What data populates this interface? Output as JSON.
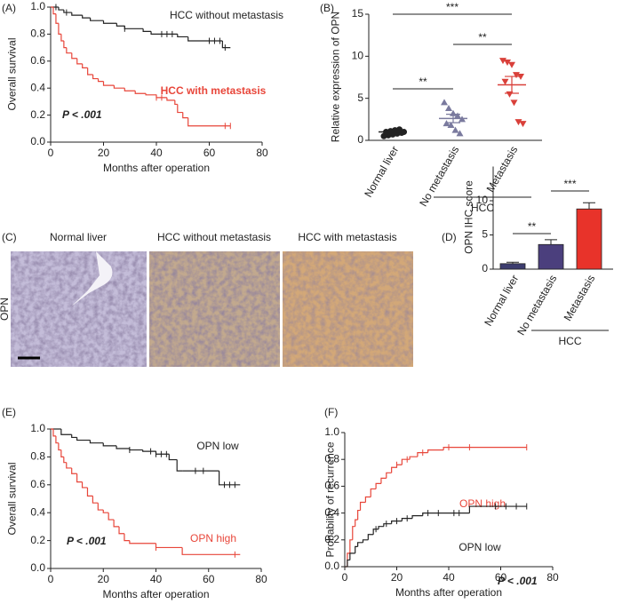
{
  "chart_data": [
    {
      "type": "step",
      "panel": "(A)",
      "ylabel": "Overall survival",
      "xlabel": "Months after operation",
      "xlim": [
        0,
        80
      ],
      "xticks": [
        0,
        20,
        40,
        60,
        80
      ],
      "ylim": [
        0,
        1.0
      ],
      "yticks": [
        {
          "value": 0,
          "label": "0.0"
        },
        {
          "value": 0.2,
          "label": "0.2"
        },
        {
          "value": 0.4,
          "label": "0.4"
        },
        {
          "value": 0.6,
          "label": "0.6"
        },
        {
          "value": 0.8,
          "label": "0.8"
        },
        {
          "value": 1.0,
          "label": "1.0"
        }
      ],
      "series": [
        {
          "name": "HCC without metastasis",
          "color": "#222222",
          "x": [
            0,
            3,
            5,
            8,
            12,
            15,
            20,
            25,
            28,
            35,
            38,
            48,
            52,
            65,
            68
          ],
          "values": [
            1.0,
            0.98,
            0.96,
            0.94,
            0.92,
            0.9,
            0.88,
            0.86,
            0.84,
            0.82,
            0.8,
            0.78,
            0.75,
            0.7,
            0.7
          ],
          "censored": [
            2,
            6,
            28,
            42,
            44,
            46,
            60,
            62,
            64,
            66
          ]
        },
        {
          "name": "HCC with metastasis",
          "color": "#e8463a",
          "x": [
            0,
            1,
            2,
            3,
            4,
            5,
            6,
            8,
            10,
            12,
            14,
            16,
            18,
            20,
            24,
            28,
            32,
            36,
            40,
            44,
            47,
            48,
            50,
            52,
            68
          ],
          "values": [
            1.0,
            0.95,
            0.88,
            0.8,
            0.75,
            0.7,
            0.66,
            0.62,
            0.58,
            0.55,
            0.5,
            0.47,
            0.45,
            0.42,
            0.4,
            0.38,
            0.36,
            0.35,
            0.33,
            0.31,
            0.28,
            0.22,
            0.18,
            0.12,
            0.12
          ],
          "censored": [
            40,
            42,
            66,
            68
          ]
        }
      ],
      "annotation": "P < .001"
    },
    {
      "type": "dot",
      "panel": "(B)",
      "ylabel": "Relative expression of OPN",
      "categories": [
        "Normal liver",
        "No metastasis",
        "Metastasis"
      ],
      "group_label": "HCC",
      "ylim": [
        0,
        15
      ],
      "yticks": [
        0,
        5,
        10,
        15
      ],
      "colors": [
        "#222222",
        "#7a7a9e",
        "#d9403a"
      ],
      "points": [
        [
          0.5,
          0.6,
          0.7,
          0.8,
          0.9,
          1.0,
          1.1,
          1.2,
          1.3,
          1.0
        ],
        [
          4.5,
          3.8,
          3.2,
          2.9,
          2.5,
          2.0,
          1.8,
          1.2,
          0.8
        ],
        [
          9.5,
          9.3,
          9.0,
          7.8,
          7.6,
          7.0,
          5.5,
          4.5,
          2.2,
          2.0
        ]
      ],
      "means": [
        1.0,
        2.6,
        6.6
      ],
      "sem": [
        0.15,
        0.5,
        1.0
      ],
      "significance": [
        {
          "between": [
            0,
            1
          ],
          "label": "**"
        },
        {
          "between": [
            0,
            2
          ],
          "label": "***"
        },
        {
          "between": [
            1,
            2
          ],
          "label": "**"
        }
      ]
    },
    {
      "type": "bar",
      "panel": "(D)",
      "ylabel": "OPN IHC score",
      "categories": [
        "Normal liver",
        "No metastasis",
        "Metastasis"
      ],
      "group_label": "HCC",
      "ylim": [
        0,
        15
      ],
      "yticks": [
        0,
        5,
        10
      ],
      "colors": [
        "#3c3c6e",
        "#4b3f7d",
        "#e8332a"
      ],
      "values": [
        0.8,
        3.6,
        8.8
      ],
      "errors": [
        0.2,
        0.7,
        0.9
      ],
      "significance": [
        {
          "between": [
            0,
            1
          ],
          "label": "**"
        },
        {
          "between": [
            1,
            2
          ],
          "label": "***"
        }
      ]
    },
    {
      "type": "step",
      "panel": "(E)",
      "ylabel": "Overall survival",
      "xlabel": "Months after operation",
      "xlim": [
        0,
        80
      ],
      "xticks": [
        0,
        20,
        40,
        60,
        80
      ],
      "ylim": [
        0,
        1.0
      ],
      "yticks": [
        {
          "value": 0,
          "label": "0.0"
        },
        {
          "value": 0.2,
          "label": "0.2"
        },
        {
          "value": 0.4,
          "label": "0.4"
        },
        {
          "value": 0.6,
          "label": "0.6"
        },
        {
          "value": 0.8,
          "label": "0.8"
        },
        {
          "value": 1.0,
          "label": "1.0"
        }
      ],
      "series": [
        {
          "name": "OPN low",
          "color": "#222222",
          "x": [
            0,
            4,
            8,
            10,
            15,
            20,
            25,
            30,
            35,
            40,
            45,
            48,
            50,
            64,
            72
          ],
          "values": [
            1.0,
            0.96,
            0.94,
            0.92,
            0.9,
            0.88,
            0.86,
            0.85,
            0.84,
            0.82,
            0.78,
            0.7,
            0.7,
            0.6,
            0.6
          ],
          "censored": [
            30,
            38,
            40,
            42,
            44,
            55,
            58,
            66,
            68,
            70
          ]
        },
        {
          "name": "OPN high",
          "color": "#e8463a",
          "x": [
            0,
            1,
            2,
            3,
            4,
            5,
            6,
            8,
            10,
            12,
            14,
            16,
            18,
            20,
            22,
            24,
            26,
            28,
            30,
            40,
            50,
            72
          ],
          "values": [
            1.0,
            0.95,
            0.9,
            0.85,
            0.8,
            0.76,
            0.72,
            0.68,
            0.62,
            0.58,
            0.52,
            0.47,
            0.42,
            0.4,
            0.35,
            0.3,
            0.25,
            0.2,
            0.18,
            0.15,
            0.1,
            0.1
          ],
          "censored": [
            40,
            70
          ]
        }
      ],
      "annotation": "P < .001"
    },
    {
      "type": "step",
      "panel": "(F)",
      "ylabel": "Probability of recurrence",
      "xlabel": "Months after operation",
      "xlim": [
        0,
        80
      ],
      "xticks": [
        0,
        20,
        40,
        60,
        80
      ],
      "ylim": [
        0,
        1.0
      ],
      "yticks": [
        {
          "value": 0,
          "label": "0.0"
        },
        {
          "value": 0.2,
          "label": "0.2"
        },
        {
          "value": 0.4,
          "label": "0.4"
        },
        {
          "value": 0.6,
          "label": "0.6"
        },
        {
          "value": 0.8,
          "label": "0.8"
        },
        {
          "value": 1.0,
          "label": "1.0"
        }
      ],
      "series": [
        {
          "name": "OPN high",
          "color": "#e8463a",
          "x": [
            0,
            1,
            2,
            3,
            4,
            5,
            6,
            8,
            10,
            12,
            14,
            16,
            18,
            20,
            22,
            25,
            28,
            32,
            38,
            70
          ],
          "values": [
            0,
            0.1,
            0.2,
            0.3,
            0.35,
            0.42,
            0.48,
            0.52,
            0.58,
            0.62,
            0.66,
            0.7,
            0.74,
            0.76,
            0.8,
            0.82,
            0.85,
            0.87,
            0.89,
            0.89
          ],
          "censored": [
            20,
            24,
            30,
            40,
            48,
            70
          ]
        },
        {
          "name": "OPN low",
          "color": "#222222",
          "x": [
            0,
            1,
            2,
            4,
            5,
            7,
            9,
            11,
            13,
            15,
            18,
            22,
            26,
            30,
            40,
            48,
            70
          ],
          "values": [
            0,
            0.05,
            0.1,
            0.15,
            0.18,
            0.2,
            0.24,
            0.28,
            0.3,
            0.32,
            0.34,
            0.36,
            0.38,
            0.4,
            0.4,
            0.45,
            0.45
          ],
          "censored": [
            12,
            16,
            20,
            24,
            32,
            36,
            42,
            44,
            58,
            62,
            66,
            70
          ]
        }
      ],
      "annotation": "P < .001"
    }
  ],
  "panel_c": {
    "label": "(C)",
    "row_label": "OPN",
    "titles": [
      "Normal liver",
      "HCC without metastasis",
      "HCC with metastasis"
    ]
  }
}
